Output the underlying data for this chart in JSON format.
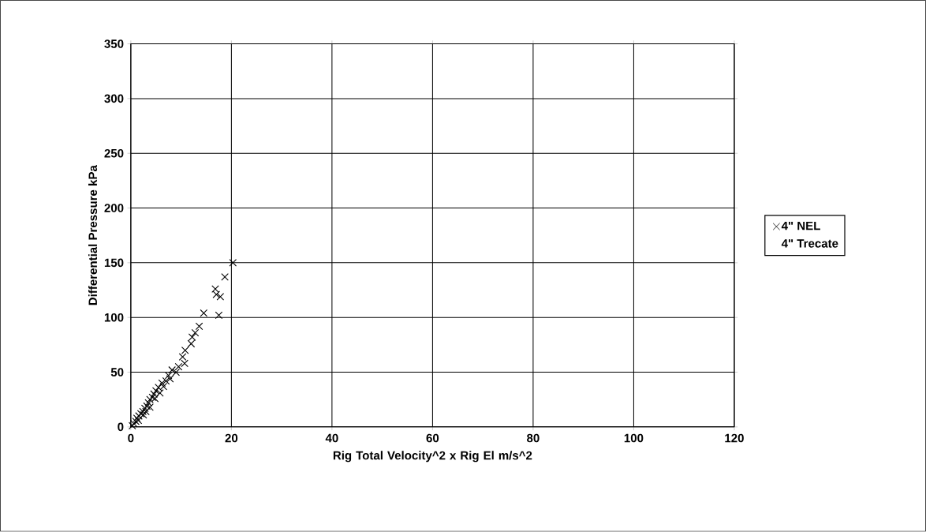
{
  "chart_data": {
    "type": "scatter",
    "xlabel": "Rig Total Velocity^2 x Rig El m/s^2",
    "ylabel": "Differential Pressure kPa",
    "xlim": [
      0,
      120
    ],
    "xticks": [
      0,
      20,
      40,
      60,
      80,
      100,
      120
    ],
    "ylim": [
      0,
      350
    ],
    "yticks": [
      0,
      50,
      100,
      150,
      200,
      250,
      300,
      350
    ],
    "grid": true,
    "legend": "right",
    "series": [
      {
        "name": "4\" NEL",
        "color": "#000000",
        "marker": "cross",
        "x": [
          20.3,
          18.7,
          16.8,
          17.0,
          17.8,
          17.5,
          14.5,
          13.6,
          12.8,
          12.2,
          12.0,
          10.8,
          10.3,
          10.7,
          9.5,
          8.2,
          7.5,
          7.0,
          6.2,
          5.5,
          5.0,
          4.6,
          4.3,
          3.8,
          3.5,
          3.2,
          2.8,
          2.4,
          2.0,
          1.6,
          1.2,
          1.0,
          0.6,
          0.3,
          1.5,
          2.5,
          3.0,
          3.8,
          4.8,
          5.8,
          6.5,
          7.8,
          9.0
        ],
        "values": [
          150,
          137,
          126,
          121,
          119,
          102,
          104,
          92,
          86,
          82,
          76,
          70,
          64,
          58,
          55,
          52,
          47,
          42,
          40,
          36,
          33,
          30,
          27,
          25,
          22,
          19,
          17,
          14,
          12,
          10,
          8,
          5,
          3,
          1,
          6,
          11,
          14,
          18,
          26,
          31,
          37,
          44,
          50
        ]
      },
      {
        "name": "4\" Trecate",
        "marker": "none"
      }
    ]
  }
}
